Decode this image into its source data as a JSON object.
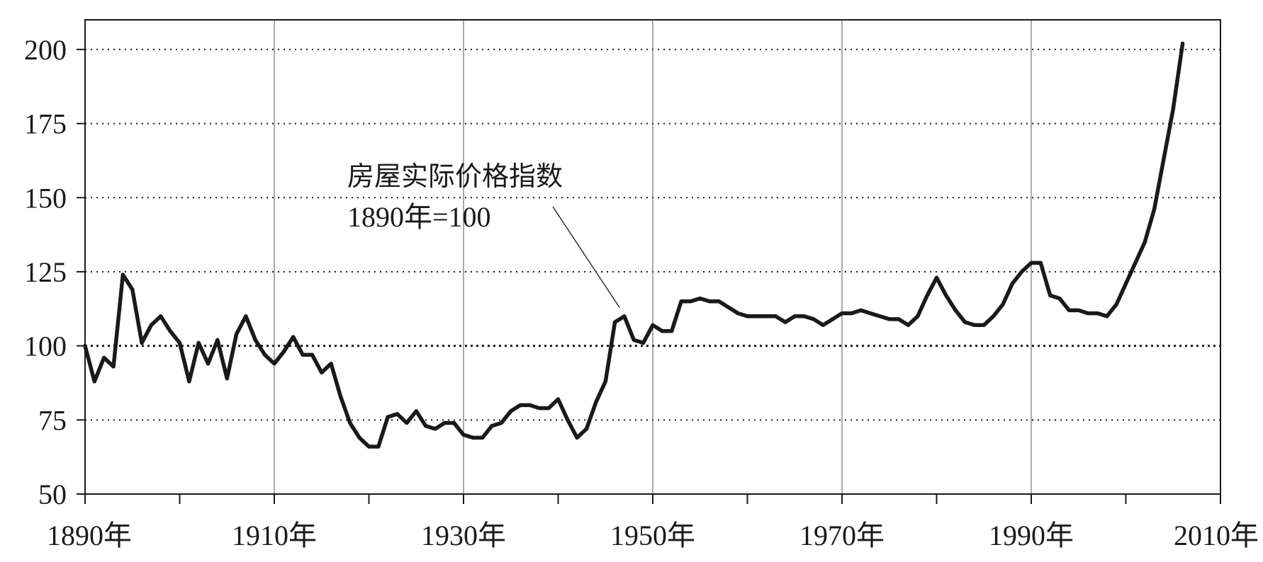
{
  "chart_data": {
    "type": "line",
    "title": "",
    "xlabel": "",
    "ylabel": "",
    "xlim": [
      1890,
      2010
    ],
    "ylim": [
      50,
      210
    ],
    "grid": {
      "horizontal": "dotted",
      "vertical": "solid"
    },
    "x_ticks": [
      1890,
      1900,
      1910,
      1920,
      1930,
      1940,
      1950,
      1960,
      1970,
      1980,
      1990,
      2000,
      2010
    ],
    "x_tick_labels": [
      {
        "x": 1890,
        "label": "1890年"
      },
      {
        "x": 1910,
        "label": "1910年"
      },
      {
        "x": 1930,
        "label": "1930年"
      },
      {
        "x": 1950,
        "label": "1950年"
      },
      {
        "x": 1970,
        "label": "1970年"
      },
      {
        "x": 1990,
        "label": "1990年"
      },
      {
        "x": 2010,
        "label": "2010年"
      }
    ],
    "y_ticks": [
      50,
      75,
      100,
      125,
      150,
      175,
      200
    ],
    "y_tick_labels": [
      "50",
      "75",
      "100",
      "125",
      "150",
      "175",
      "200"
    ],
    "annotation": {
      "text": "房屋实际价格指数",
      "subtext": "1890年=100",
      "points_to": {
        "x": 1946.5,
        "y": 110
      }
    },
    "series": [
      {
        "color": "#1a1a1a",
        "x": [
          1890,
          1891,
          1892,
          1893,
          1894,
          1895,
          1896,
          1897,
          1898,
          1899,
          1900,
          1901,
          1902,
          1903,
          1904,
          1905,
          1906,
          1907,
          1908,
          1909,
          1910,
          1911,
          1912,
          1913,
          1914,
          1915,
          1916,
          1917,
          1918,
          1919,
          1920,
          1921,
          1922,
          1923,
          1924,
          1925,
          1926,
          1927,
          1928,
          1929,
          1930,
          1931,
          1932,
          1933,
          1934,
          1935,
          1936,
          1937,
          1938,
          1939,
          1940,
          1941,
          1942,
          1943,
          1944,
          1945,
          1946,
          1947,
          1948,
          1949,
          1950,
          1951,
          1952,
          1953,
          1954,
          1955,
          1956,
          1957,
          1958,
          1959,
          1960,
          1961,
          1962,
          1963,
          1964,
          1965,
          1966,
          1967,
          1968,
          1969,
          1970,
          1971,
          1972,
          1973,
          1974,
          1975,
          1976,
          1977,
          1978,
          1979,
          1980,
          1981,
          1982,
          1983,
          1984,
          1985,
          1986,
          1987,
          1988,
          1989,
          1990,
          1991,
          1992,
          1993,
          1994,
          1995,
          1996,
          1997,
          1998,
          1999,
          2000,
          2001,
          2002,
          2003,
          2004,
          2005,
          2006
        ],
        "values": [
          100,
          88,
          96,
          93,
          124,
          119,
          101,
          107,
          110,
          105,
          101,
          88,
          101,
          94,
          102,
          89,
          104,
          110,
          102,
          97,
          94,
          98,
          103,
          97,
          97,
          91,
          94,
          83,
          74,
          69,
          66,
          66,
          76,
          77,
          74,
          78,
          73,
          72,
          74,
          74,
          70,
          69,
          69,
          73,
          74,
          78,
          80,
          80,
          79,
          79,
          82,
          75,
          69,
          72,
          81,
          88,
          108,
          110,
          102,
          101,
          107,
          105,
          105,
          115,
          115,
          116,
          115,
          115,
          113,
          111,
          110,
          110,
          110,
          110,
          108,
          110,
          110,
          109,
          107,
          109,
          111,
          111,
          112,
          111,
          110,
          109,
          109,
          107,
          110,
          117,
          123,
          117,
          112,
          108,
          107,
          107,
          110,
          114,
          121,
          125,
          128,
          128,
          117,
          116,
          112,
          112,
          111,
          111,
          110,
          114,
          121,
          128,
          135,
          146,
          163,
          180,
          202
        ]
      }
    ]
  }
}
